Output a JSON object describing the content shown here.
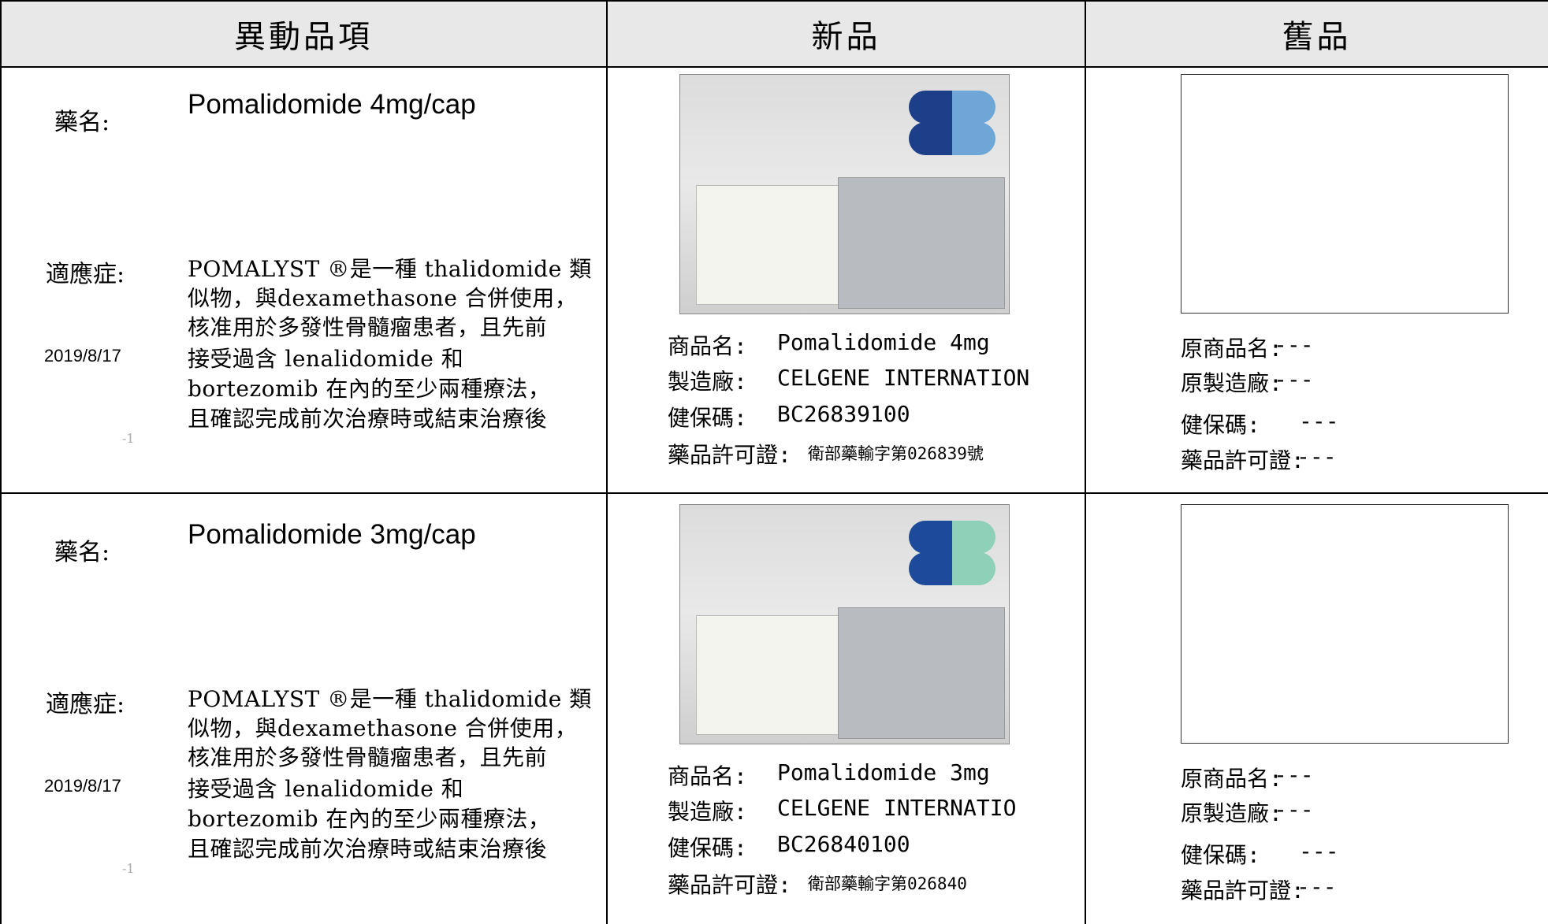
{
  "header": {
    "columns": [
      "異動品項",
      "新品",
      "舊品"
    ]
  },
  "rows": [
    {
      "drug_label": "藥名:",
      "drug_name": "Pomalidomide  4mg/cap",
      "indication_label": "適應症:",
      "indication": [
        "POMALYST ®是一種 thalidomide 類",
        "似物，與dexamethasone 合併使用，",
        "核准用於多發性骨髓瘤患者，且先前",
        "接受過含 lenalidomide 和",
        "bortezomib 在內的至少兩種療法，",
        "且確認完成前次治療時或結束治療後"
      ],
      "date": "2019/8/17",
      "page_mark": "-1",
      "new": {
        "fields": [
          {
            "label": "商品名:",
            "value": "Pomalidomide 4mg"
          },
          {
            "label": "製造廠:",
            "value": "CELGENE INTERNATION"
          },
          {
            "label": "健保碼:",
            "value": "BC26839100"
          },
          {
            "label": "藥品許可證:",
            "value": "衛部藥輸字第026839號"
          }
        ]
      },
      "old": {
        "fields": [
          {
            "label": "原商品名:",
            "value": "---"
          },
          {
            "label": "原製造廠:",
            "value": "---"
          },
          {
            "label": "健保碼:",
            "value": "---"
          },
          {
            "label": "藥品許可證:",
            "value": "---"
          }
        ]
      }
    },
    {
      "drug_label": "藥名:",
      "drug_name": "Pomalidomide  3mg/cap",
      "indication_label": "適應症:",
      "indication": [
        " POMALYST ®是一種 thalidomide 類",
        "似物，與dexamethasone 合併使用，",
        "核准用於多發性骨髓瘤患者，且先前",
        "接受過含 lenalidomide 和",
        "bortezomib 在內的至少兩種療法，",
        "且確認完成前次治療時或結束治療後"
      ],
      "date": "2019/8/17",
      "page_mark": "-1",
      "new": {
        "fields": [
          {
            "label": "商品名:",
            "value": "Pomalidomide 3mg"
          },
          {
            "label": "製造廠:",
            "value": " CELGENE INTERNATIO"
          },
          {
            "label": "健保碼:",
            "value": "BC26840100"
          },
          {
            "label": "藥品許可證:",
            "value": "衛部藥輸字第026840"
          }
        ]
      },
      "old": {
        "fields": [
          {
            "label": "原商品名:",
            "value": "---"
          },
          {
            "label": "原製造廠:",
            "value": "---"
          },
          {
            "label": "健保碼:",
            "value": "---"
          },
          {
            "label": "藥品許可證:",
            "value": "---"
          }
        ]
      }
    }
  ]
}
